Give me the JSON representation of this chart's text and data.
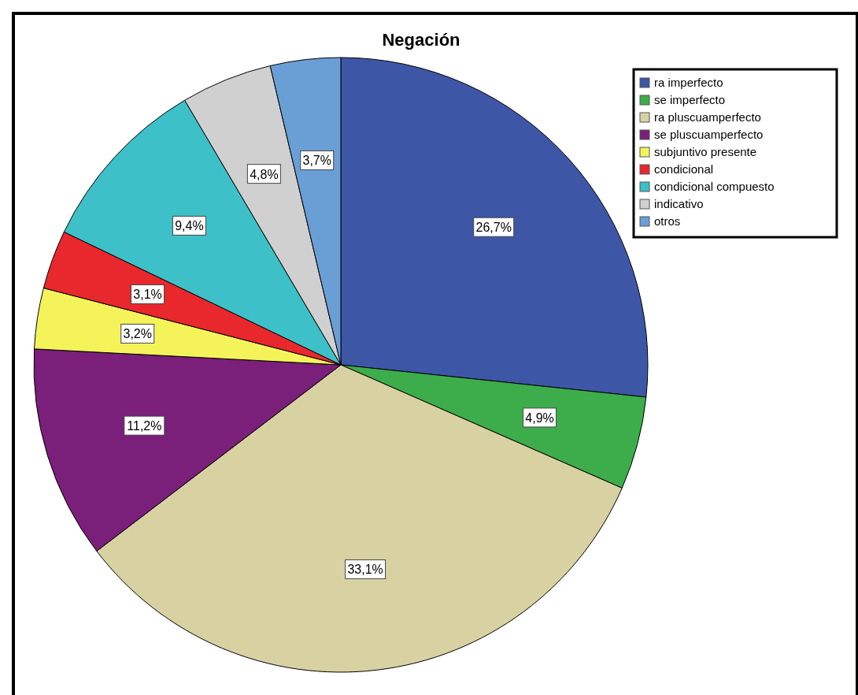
{
  "chart_data": {
    "type": "pie",
    "title": "Negación",
    "categories": [
      "ra imperfecto",
      "se imperfecto",
      "ra pluscuamperfecto",
      "se pluscuamperfecto",
      "subjuntivo presente",
      "condicional",
      "condicional compuesto",
      "indicativo",
      "otros"
    ],
    "values": [
      26.7,
      4.9,
      33.1,
      11.2,
      3.2,
      3.1,
      9.4,
      4.8,
      3.7
    ],
    "colors": [
      "#3e56a6",
      "#3cad4a",
      "#d8d2a3",
      "#7a1f7a",
      "#f5f35a",
      "#e8282d",
      "#3ec0c8",
      "#d0d0d0",
      "#6a9fd6"
    ],
    "value_labels": [
      "26,7%",
      "4,9%",
      "33,1%",
      "11,2%",
      "3,2%",
      "3,1%",
      "9,4%",
      "4,8%",
      "3,7%"
    ],
    "legend": "top right"
  }
}
